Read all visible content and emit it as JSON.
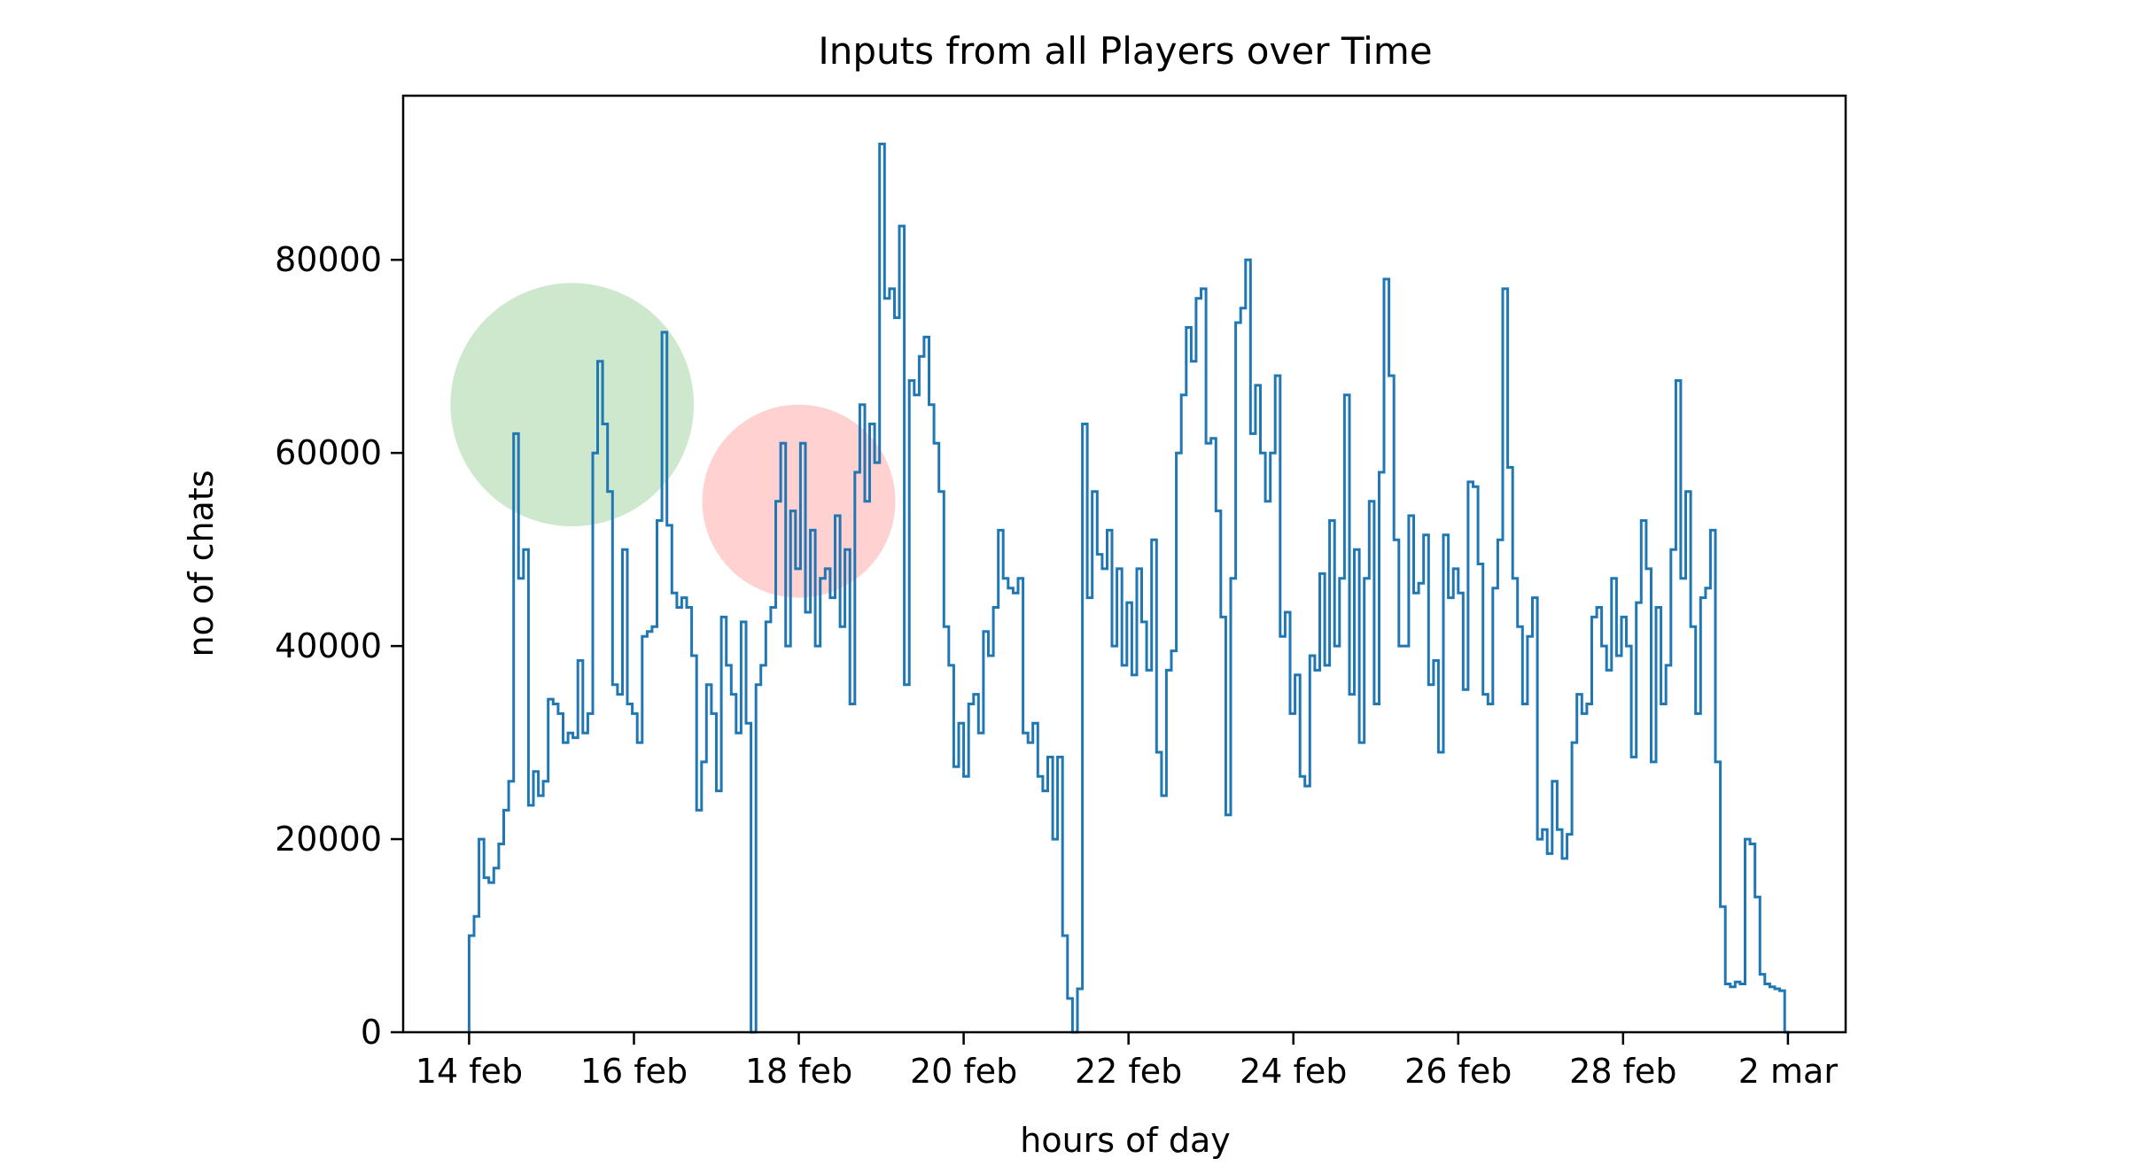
{
  "chart_data": {
    "type": "line",
    "title": "Inputs from all Players over Time",
    "xlabel": "hours of day",
    "ylabel": "no of chats",
    "x_ticks": [
      "14 feb",
      "16 feb",
      "18 feb",
      "20 feb",
      "22 feb",
      "24 feb",
      "26 feb",
      "28 feb",
      "2 mar"
    ],
    "x_tick_days": [
      0,
      2,
      4,
      6,
      8,
      10,
      12,
      14,
      16
    ],
    "y_ticks": [
      0,
      20000,
      40000,
      60000,
      80000
    ],
    "xlim_days": [
      -0.8,
      16.7
    ],
    "ylim": [
      0,
      97000
    ],
    "grid": false,
    "line_color": "#1f77b4",
    "series": [
      {
        "name": "",
        "step": "post",
        "x_days": [
          0.0,
          0.06,
          0.12,
          0.18,
          0.24,
          0.3,
          0.36,
          0.42,
          0.48,
          0.54,
          0.6,
          0.66,
          0.72,
          0.78,
          0.84,
          0.9,
          0.96,
          1.02,
          1.08,
          1.14,
          1.2,
          1.26,
          1.32,
          1.38,
          1.44,
          1.5,
          1.56,
          1.62,
          1.68,
          1.74,
          1.8,
          1.86,
          1.92,
          1.98,
          2.04,
          2.1,
          2.16,
          2.22,
          2.28,
          2.34,
          2.4,
          2.46,
          2.52,
          2.58,
          2.64,
          2.7,
          2.76,
          2.82,
          2.88,
          2.94,
          3.0,
          3.06,
          3.12,
          3.18,
          3.24,
          3.3,
          3.36,
          3.42,
          3.48,
          3.54,
          3.6,
          3.66,
          3.72,
          3.78,
          3.84,
          3.9,
          3.96,
          4.02,
          4.08,
          4.14,
          4.2,
          4.26,
          4.32,
          4.38,
          4.44,
          4.5,
          4.56,
          4.62,
          4.68,
          4.74,
          4.8,
          4.86,
          4.92,
          4.98,
          5.04,
          5.1,
          5.16,
          5.22,
          5.28,
          5.34,
          5.4,
          5.46,
          5.52,
          5.58,
          5.64,
          5.7,
          5.76,
          5.82,
          5.88,
          5.94,
          6.0,
          6.06,
          6.12,
          6.18,
          6.24,
          6.3,
          6.36,
          6.42,
          6.48,
          6.54,
          6.6,
          6.66,
          6.72,
          6.78,
          6.84,
          6.9,
          6.96,
          7.02,
          7.08,
          7.14,
          7.2,
          7.26,
          7.32,
          7.38,
          7.44,
          7.5,
          7.56,
          7.62,
          7.68,
          7.74,
          7.8,
          7.86,
          7.92,
          7.98,
          8.04,
          8.1,
          8.16,
          8.22,
          8.28,
          8.34,
          8.4,
          8.46,
          8.52,
          8.58,
          8.64,
          8.7,
          8.76,
          8.82,
          8.88,
          8.94,
          9.0,
          9.06,
          9.12,
          9.18,
          9.24,
          9.3,
          9.36,
          9.42,
          9.48,
          9.54,
          9.6,
          9.66,
          9.72,
          9.78,
          9.84,
          9.9,
          9.96,
          10.02,
          10.08,
          10.14,
          10.2,
          10.26,
          10.32,
          10.38,
          10.44,
          10.5,
          10.56,
          10.62,
          10.68,
          10.74,
          10.8,
          10.86,
          10.92,
          10.98,
          11.04,
          11.1,
          11.16,
          11.22,
          11.28,
          11.34,
          11.4,
          11.46,
          11.52,
          11.58,
          11.64,
          11.7,
          11.76,
          11.82,
          11.88,
          11.94,
          12.0,
          12.06,
          12.12,
          12.18,
          12.24,
          12.3,
          12.36,
          12.42,
          12.48,
          12.54,
          12.6,
          12.66,
          12.72,
          12.78,
          12.84,
          12.9,
          12.96,
          13.02,
          13.08,
          13.14,
          13.2,
          13.26,
          13.32,
          13.38,
          13.44,
          13.5,
          13.56,
          13.62,
          13.68,
          13.74,
          13.8,
          13.86,
          13.92,
          13.98,
          14.04,
          14.1,
          14.16,
          14.22,
          14.28,
          14.34,
          14.4,
          14.46,
          14.52,
          14.58,
          14.64,
          14.7,
          14.76,
          14.82,
          14.88,
          14.94,
          15.0,
          15.06,
          15.12,
          15.18,
          15.24,
          15.3,
          15.36,
          15.42,
          15.48,
          15.54,
          15.6,
          15.66,
          15.72,
          15.78,
          15.84,
          15.9,
          15.96
        ],
        "values": [
          10000,
          12000,
          20000,
          16000,
          15500,
          17000,
          19500,
          23000,
          26000,
          62000,
          47000,
          50000,
          23500,
          27000,
          24500,
          26000,
          34500,
          34000,
          33000,
          30000,
          31000,
          30500,
          38500,
          31000,
          33000,
          60000,
          69500,
          63000,
          56000,
          36000,
          35000,
          50000,
          34000,
          33000,
          30000,
          41000,
          41500,
          42000,
          53000,
          72500,
          52500,
          45500,
          44000,
          45000,
          44000,
          39000,
          23000,
          28000,
          36000,
          33000,
          25000,
          43000,
          38000,
          35000,
          31000,
          42500,
          32000,
          0,
          36000,
          38000,
          42500,
          44000,
          55000,
          61000,
          40000,
          54000,
          48000,
          61000,
          43500,
          52000,
          40000,
          47000,
          48000,
          45000,
          53500,
          42000,
          50000,
          34000,
          58000,
          65000,
          55000,
          63000,
          59000,
          92000,
          76000,
          77000,
          74000,
          83500,
          36000,
          67500,
          66000,
          70000,
          72000,
          65000,
          61000,
          56000,
          42000,
          38000,
          27500,
          32000,
          26500,
          34000,
          35000,
          31000,
          41500,
          39000,
          44000,
          52000,
          47000,
          46000,
          45500,
          47000,
          31000,
          30000,
          32000,
          26500,
          25000,
          28500,
          20000,
          28500,
          10000,
          3500,
          0,
          4500,
          63000,
          45000,
          56000,
          49500,
          48000,
          52000,
          40000,
          48000,
          38000,
          44500,
          37000,
          48000,
          42500,
          37500,
          51000,
          29000,
          24500,
          37500,
          39500,
          60000,
          66000,
          73000,
          69500,
          76000,
          77000,
          61000,
          61500,
          54000,
          43000,
          22500,
          47000,
          73500,
          75000,
          80000,
          62000,
          67000,
          60000,
          55000,
          60000,
          68000,
          41000,
          43500,
          33000,
          37000,
          26500,
          25500,
          39000,
          37500,
          47500,
          38000,
          53000,
          40000,
          47000,
          66000,
          35000,
          50000,
          30000,
          47000,
          55000,
          34000,
          58000,
          78000,
          68000,
          51000,
          40000,
          40000,
          53500,
          45500,
          46500,
          51500,
          36000,
          38500,
          29000,
          51500,
          45000,
          48000,
          45500,
          35500,
          57000,
          56500,
          48500,
          35000,
          34000,
          46000,
          51000,
          77000,
          58500,
          47000,
          42000,
          34000,
          41000,
          45000,
          20000,
          21000,
          18500,
          26000,
          21000,
          18000,
          20500,
          30000,
          35000,
          33000,
          34000,
          43000,
          44000,
          40000,
          37500,
          47000,
          39000,
          43000,
          40000,
          28500,
          44500,
          53000,
          48000,
          28000,
          44000,
          34000,
          38000,
          50000,
          67500,
          47000,
          56000,
          42000,
          33000,
          45000,
          46000,
          52000,
          28000,
          13000,
          5000,
          4700,
          5200,
          5000,
          20000,
          19500,
          14000,
          6000,
          5000,
          4700,
          4500,
          4300,
          0
        ]
      }
    ],
    "annotations": [
      {
        "shape": "circle",
        "cx_days": 1.25,
        "cy_value": 65000,
        "r_y_value": 12600,
        "color": "#2ca02c",
        "opacity": 0.24
      },
      {
        "shape": "circle",
        "cx_days": 4.0,
        "cy_value": 55000,
        "r_y_value": 10000,
        "color": "#ff0000",
        "opacity": 0.18
      }
    ]
  }
}
